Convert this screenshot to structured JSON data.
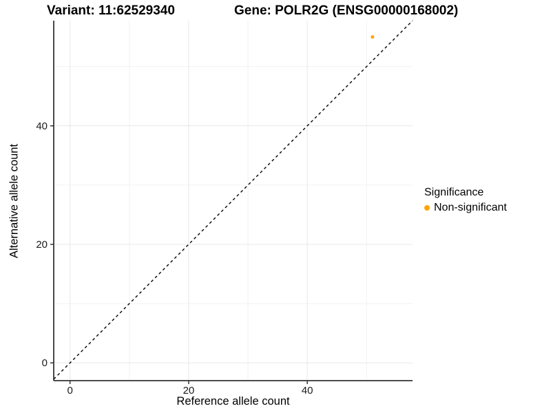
{
  "titles": {
    "variant": "Variant: 11:62529340",
    "gene": "Gene: POLR2G (ENSG00000168002)"
  },
  "chart_data": {
    "type": "scatter",
    "title_left": "Variant: 11:62529340",
    "title_right": "Gene: POLR2G (ENSG00000168002)",
    "xlabel": "Reference allele count",
    "ylabel": "Alternative allele count",
    "xlim": [
      -2.75,
      57.75
    ],
    "ylim": [
      -3,
      57.75
    ],
    "xticks": [
      0,
      20,
      40
    ],
    "yticks": [
      0,
      20,
      40
    ],
    "xticks_minor": [
      10,
      30,
      50
    ],
    "yticks_minor": [
      10,
      30,
      50
    ],
    "grid": "major+minor",
    "reference_line": {
      "type": "abline",
      "slope": 1,
      "intercept": 0,
      "style": "dashed",
      "color": "#000000"
    },
    "series": [
      {
        "name": "Non-significant",
        "color": "#FFA500",
        "point_radius": 2.5,
        "points": [
          {
            "x": 51,
            "y": 55
          }
        ]
      }
    ],
    "legend": {
      "title": "Significance",
      "position": "right",
      "items": [
        {
          "label": "Non-significant",
          "color": "#FFA500"
        }
      ]
    }
  },
  "colors": {
    "grid_major": "#E7E7E7",
    "grid_minor": "#F2F2F2",
    "axis_line": "#333333",
    "tick_mark": "#333333",
    "tick_text": "#1A1A1A"
  }
}
